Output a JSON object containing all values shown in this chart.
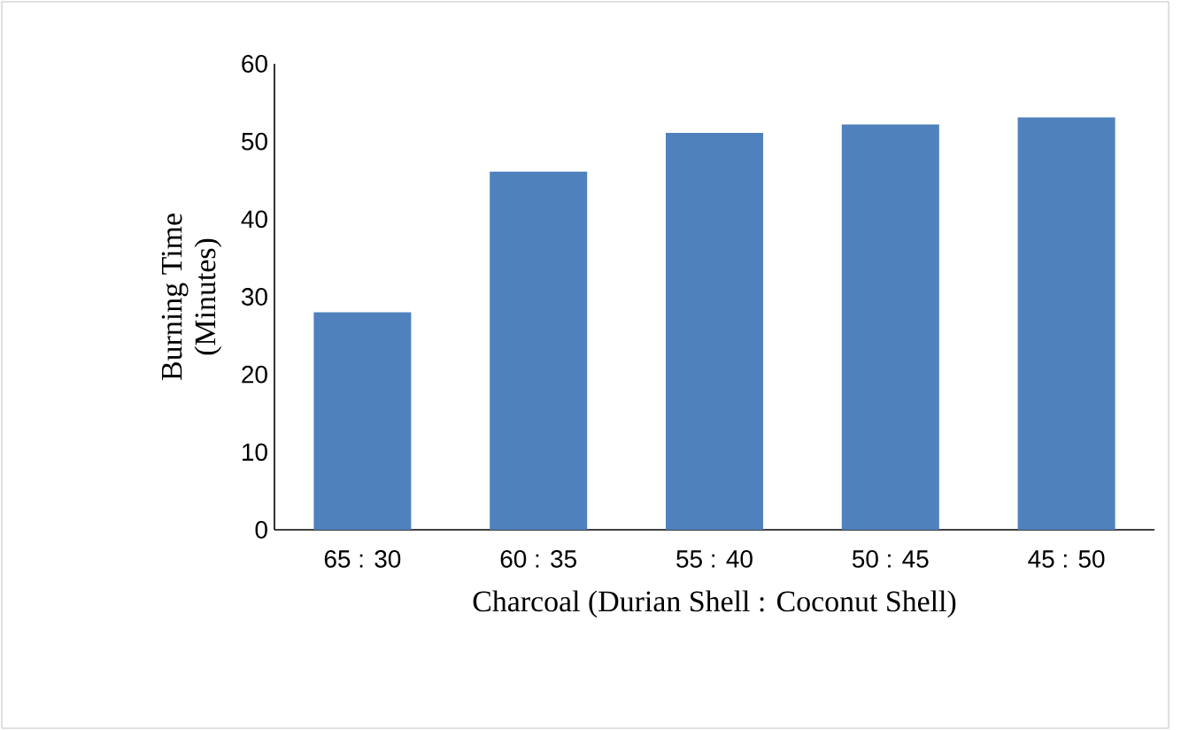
{
  "chart_data": {
    "type": "bar",
    "categories": [
      "65 : 30",
      "60 : 35",
      "55 : 40",
      "50 : 45",
      "45 : 50"
    ],
    "values": [
      28.0,
      46.1,
      51.1,
      52.2,
      53.1
    ],
    "color": "#4f81bd",
    "xlabel": "Charcoal (Durian Shell : Coconut Shell)",
    "ylabel": "Burning Time\n(Minutes)",
    "ylim": [
      0,
      60
    ],
    "yticks": [
      0,
      10,
      20,
      30,
      40,
      50,
      60
    ],
    "grid": false
  }
}
